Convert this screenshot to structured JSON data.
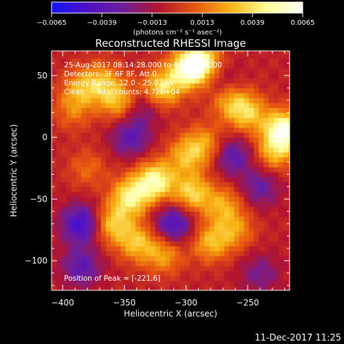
{
  "chart_data": {
    "type": "heatmap",
    "title": "Reconstructed RHESSI Image",
    "xlabel": "Heliocentric X (arcsec)",
    "ylabel": "Heliocentric Y (arcsec)",
    "xlim": [
      -409,
      -216
    ],
    "ylim": [
      -124,
      70
    ],
    "x_ticks": [
      -400,
      -350,
      -300,
      -250
    ],
    "x_tick_labels": [
      "−400",
      "−350",
      "−300",
      "−250"
    ],
    "y_ticks": [
      50,
      0,
      -50,
      -100
    ],
    "y_tick_labels": [
      "50",
      "0",
      "−50",
      "−100"
    ],
    "colorbar": {
      "range": [
        -0.0065,
        0.0065
      ],
      "ticks": [
        -0.0065,
        -0.0039,
        -0.0013,
        0.0013,
        0.0039,
        0.0065
      ],
      "tick_labels": [
        "−0.0065",
        "−0.0039",
        "−0.0013",
        "0.0013",
        "0.0039",
        "0.0065"
      ],
      "unit_label": "(photons cm⁻² s⁻¹ asec⁻²)",
      "colors": [
        "#1414f5",
        "#5010c8",
        "#6e1e9a",
        "#b4142c",
        "#e85810",
        "#f8b414",
        "#ffff96",
        "#ffffff"
      ]
    },
    "annotations": [
      "25-Aug-2017 08:14:28.000 to 08:24:28.000",
      "Detectors: 3F 6F 8F, Att 0",
      "Energy Range: 12.0 - 25.0 keV",
      "Clean     Total counts: 4.72E+04"
    ],
    "peak_label": "Position of Peak = [-221,6]",
    "peak": [
      -221,
      6
    ],
    "sources": [
      {
        "x": -355,
        "y": 30,
        "v": 0.0036
      },
      {
        "x": -368,
        "y": 46,
        "v": 0.0028
      },
      {
        "x": -320,
        "y": 40,
        "v": 0.0045
      },
      {
        "x": -298,
        "y": 55,
        "v": 0.0052
      },
      {
        "x": -288,
        "y": 62,
        "v": 0.005
      },
      {
        "x": -265,
        "y": 30,
        "v": 0.003
      },
      {
        "x": -250,
        "y": 20,
        "v": 0.0038
      },
      {
        "x": -221,
        "y": 6,
        "v": 0.0065
      },
      {
        "x": -228,
        "y": -12,
        "v": 0.0032
      },
      {
        "x": -385,
        "y": 40,
        "v": 0.0028
      },
      {
        "x": -392,
        "y": 22,
        "v": 0.002
      },
      {
        "x": -300,
        "y": -15,
        "v": 0.0032
      },
      {
        "x": -285,
        "y": -5,
        "v": 0.0028
      },
      {
        "x": -325,
        "y": -35,
        "v": 0.0055
      },
      {
        "x": -345,
        "y": -48,
        "v": 0.005
      },
      {
        "x": -295,
        "y": -45,
        "v": 0.0042
      },
      {
        "x": -270,
        "y": -55,
        "v": 0.003
      },
      {
        "x": -360,
        "y": -70,
        "v": 0.0038
      },
      {
        "x": -340,
        "y": -85,
        "v": 0.0036
      },
      {
        "x": -318,
        "y": -95,
        "v": 0.003
      },
      {
        "x": -280,
        "y": -85,
        "v": 0.0034
      },
      {
        "x": -260,
        "y": -75,
        "v": 0.0026
      },
      {
        "x": -380,
        "y": -25,
        "v": 0.0018
      },
      {
        "x": -345,
        "y": 0,
        "v": -0.003
      },
      {
        "x": -385,
        "y": -70,
        "v": -0.0045
      },
      {
        "x": -385,
        "y": -105,
        "v": -0.003
      },
      {
        "x": -310,
        "y": -70,
        "v": -0.004
      },
      {
        "x": -262,
        "y": -15,
        "v": -0.003
      },
      {
        "x": -240,
        "y": -40,
        "v": -0.0025
      },
      {
        "x": -240,
        "y": -110,
        "v": -0.002
      },
      {
        "x": -335,
        "y": 25,
        "v": -0.002
      },
      {
        "x": -270,
        "y": 45,
        "v": -0.0015
      }
    ]
  },
  "timestamp": "11-Dec-2017 11:25"
}
